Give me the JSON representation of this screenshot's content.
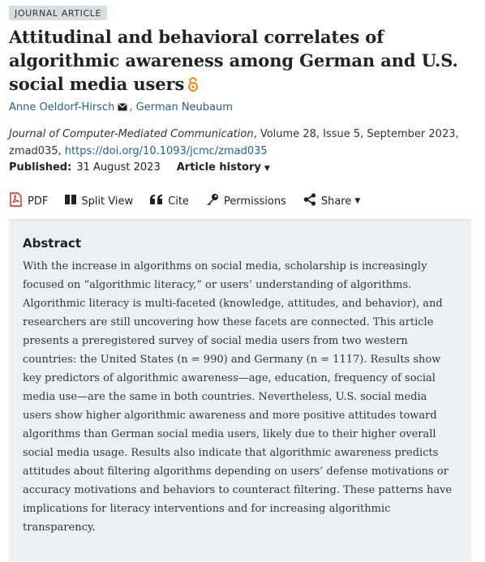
{
  "badge": "JOURNAL ARTICLE",
  "title": "Attitudinal and behavioral correlates of algorithmic awareness among German and U.S. social media users",
  "authors": [
    {
      "name": "Anne Oeldorf-Hirsch",
      "has_email": true
    },
    {
      "name": "German Neubaum",
      "has_email": false
    }
  ],
  "author_separator": ",",
  "citation": {
    "journal": "Journal of Computer-Mediated Communication",
    "details": ", Volume 28, Issue 5, September 2023, zmad035, ",
    "doi": "https://doi.org/10.1093/jcmc/zmad035"
  },
  "published": {
    "label": "Published:",
    "date": "31 August 2023",
    "history_label": "Article history",
    "history_caret": "▼"
  },
  "toolbar": {
    "pdf": "PDF",
    "split_view": "Split View",
    "cite": "Cite",
    "permissions": "Permissions",
    "share": "Share",
    "share_caret": "▼"
  },
  "abstract": {
    "heading": "Abstract",
    "text": "With the increase in algorithms on social media, scholarship is increasingly focused on “algorithmic literacy,” or users’ understanding of algorithms. Algorithmic literacy is multi-faceted (knowledge, attitudes, and behavior), and researchers are still uncovering how these facets are connected. This article presents a preregistered survey of social media users from two western countries: the United States (n = 990) and Germany (n = 1117). Results show key predictors of algorithmic awareness—age, education, frequency of social media use—are the same in both countries. Nevertheless, U.S. social media users show higher algorithmic awareness and more positive attitudes toward algorithms than German social media users, likely due to their higher overall social media usage. Results also indicate that algorithmic awareness predicts attitudes about filtering algorithms depending on users’ defense motivations or accuracy motivations and behaviors to counteract filtering. These patterns have implications for literacy interventions and for increasing algorithmic transparency."
  },
  "colors": {
    "link": "#1f5f99",
    "pdf_red": "#c8281e",
    "oa_orange": "#f68212",
    "abstract_bg": "#edf0f3"
  }
}
